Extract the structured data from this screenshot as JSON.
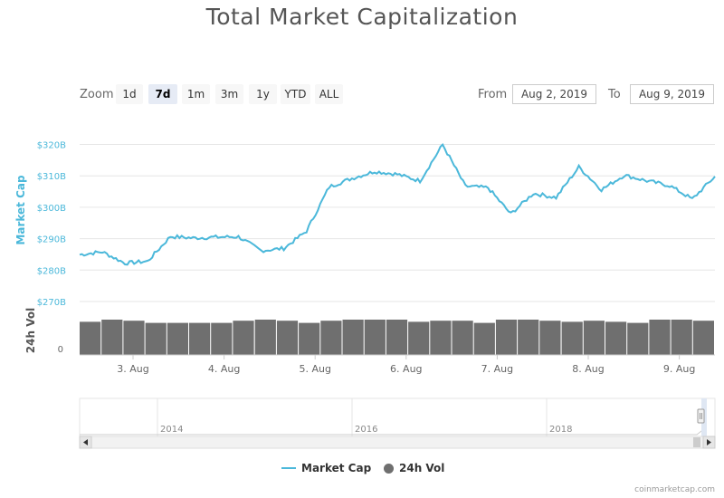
{
  "chart_data": {
    "type": "line",
    "title": "Total Market Capitalization",
    "series": [
      {
        "name": "Market Cap",
        "color": "#4bb8da",
        "x": [
          "Aug 2 12:00",
          "Aug 2 18:00",
          "Aug 3 00:00",
          "Aug 3 06:00",
          "Aug 3 12:00",
          "Aug 3 18:00",
          "Aug 4 00:00",
          "Aug 4 06:00",
          "Aug 4 12:00",
          "Aug 4 18:00",
          "Aug 5 00:00",
          "Aug 5 06:00",
          "Aug 5 12:00",
          "Aug 5 18:00",
          "Aug 6 00:00",
          "Aug 6 06:00",
          "Aug 6 12:00",
          "Aug 6 18:00",
          "Aug 7 00:00",
          "Aug 7 06:00",
          "Aug 7 12:00",
          "Aug 7 18:00",
          "Aug 8 00:00",
          "Aug 8 06:00",
          "Aug 8 12:00",
          "Aug 8 18:00",
          "Aug 9 00:00",
          "Aug 9 06:00",
          "Aug 9 12:00"
        ],
        "values": [
          284.9,
          285.8,
          282.2,
          282.8,
          290.7,
          290.2,
          290.5,
          290.6,
          286.2,
          286.9,
          292.4,
          306.5,
          309.2,
          311.4,
          310.5,
          308.4,
          319.9,
          306.7,
          306.2,
          297.9,
          304.4,
          303.1,
          312.8,
          305.6,
          310.2,
          308.4,
          306.9,
          302.6,
          309.8
        ]
      },
      {
        "name": "24h Vol",
        "color": "#6f6f6f",
        "values": [
          30,
          32,
          31,
          29,
          29,
          29,
          29,
          31,
          32,
          31,
          29,
          31,
          32,
          32,
          32,
          30,
          31,
          31,
          29,
          32,
          32,
          31,
          30,
          31,
          30,
          29,
          32,
          32,
          31
        ]
      }
    ],
    "yaxis": {
      "label": "Market Cap",
      "ticks": [
        "$270B",
        "$280B",
        "$290B",
        "$300B",
        "$310B",
        "$320B"
      ],
      "range": [
        270,
        323
      ]
    },
    "yaxis_volume": {
      "label": "24h Vol",
      "ticks": [
        "0"
      ]
    },
    "xaxis": {
      "ticks": [
        "3. Aug",
        "4. Aug",
        "5. Aug",
        "6. Aug",
        "7. Aug",
        "8. Aug",
        "9. Aug"
      ]
    },
    "navigator": {
      "years": [
        "2014",
        "2016",
        "2018"
      ]
    },
    "grid": true,
    "legend_position": "bottom-center"
  },
  "toolbar": {
    "zoom_label": "Zoom",
    "zoom_buttons": [
      "1d",
      "7d",
      "1m",
      "3m",
      "1y",
      "YTD",
      "ALL"
    ],
    "active_zoom": "7d",
    "from_label": "From",
    "from_value": "Aug 2, 2019",
    "to_label": "To",
    "to_value": "Aug 9, 2019"
  },
  "legend": {
    "items": [
      "Market Cap",
      "24h Vol"
    ]
  },
  "watermark": "coinmarketcap.com"
}
